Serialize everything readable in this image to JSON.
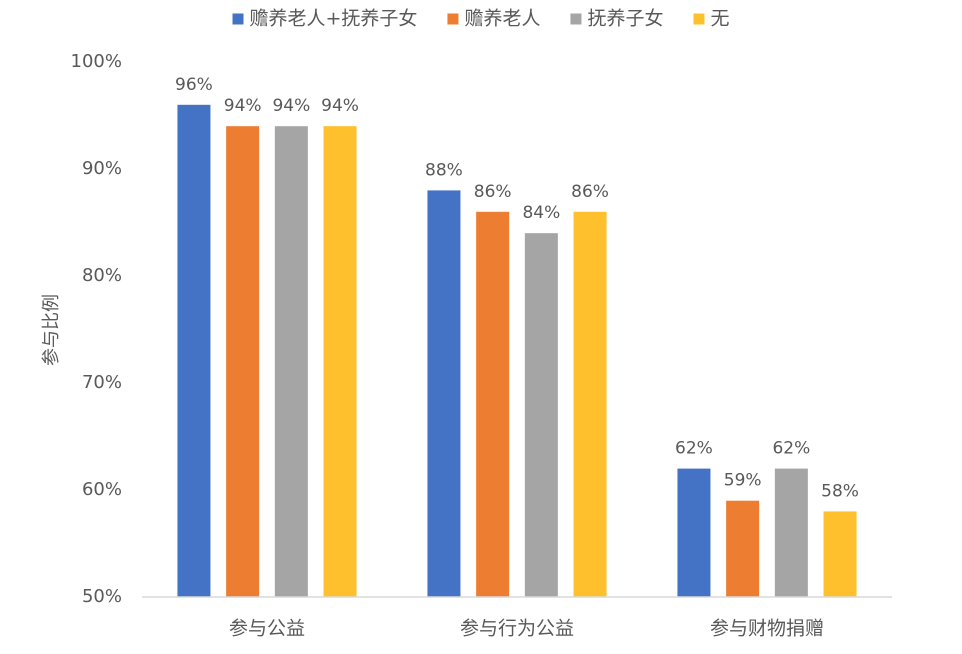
{
  "chart_data": {
    "type": "bar",
    "categories": [
      "参与公益",
      "参与行为公益",
      "参与财物捐赠"
    ],
    "series": [
      {
        "name": "赡养老人+抚养子女",
        "color": "#4472C4",
        "values": [
          96,
          88,
          62
        ]
      },
      {
        "name": "赡养老人",
        "color": "#ED7D31",
        "values": [
          94,
          86,
          59
        ]
      },
      {
        "name": "抚养子女",
        "color": "#A5A5A5",
        "values": [
          94,
          84,
          62
        ]
      },
      {
        "name": "无",
        "color": "#FFC02D",
        "values": [
          94,
          86,
          58
        ]
      }
    ],
    "ylabel": "参与比例",
    "ylim": [
      50,
      100
    ],
    "yticks": [
      "50%",
      "60%",
      "70%",
      "80%",
      "90%",
      "100%"
    ],
    "value_suffix": "%",
    "legend_position": "top",
    "grid": false
  }
}
